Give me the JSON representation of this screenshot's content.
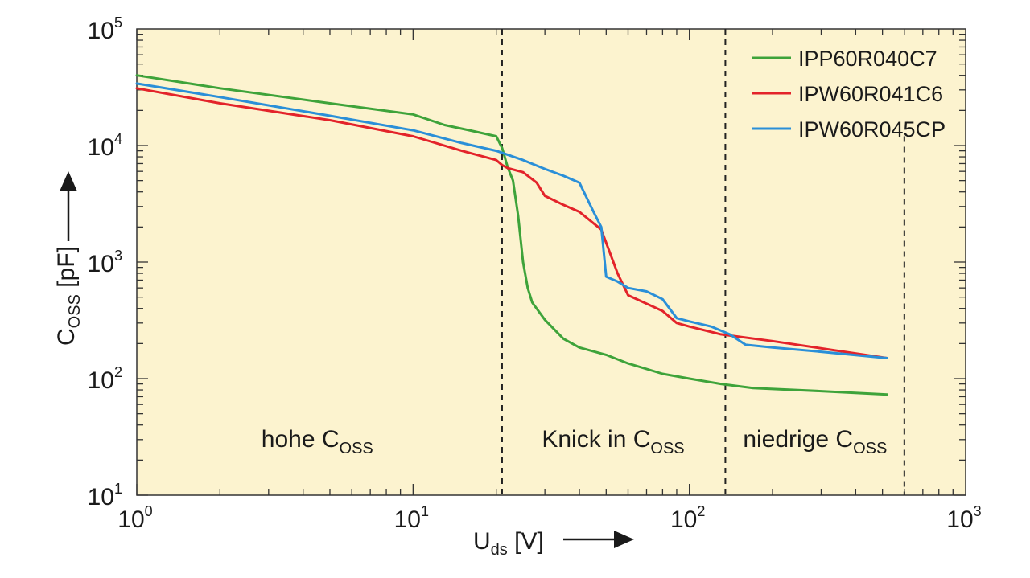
{
  "chart_data": {
    "type": "line",
    "title": "",
    "x_scale": "log",
    "y_scale": "log",
    "xlim": [
      1,
      1000
    ],
    "ylim": [
      10,
      100000
    ],
    "plot_background": "#fcf3cf",
    "xlabel": {
      "main": "U",
      "sub": "ds",
      "unit": " [V]"
    },
    "ylabel": {
      "main": "C",
      "sub": "OSS",
      "unit": " [pF]"
    },
    "x_ticks": [
      {
        "base": "10",
        "exp": "0",
        "value": 1
      },
      {
        "base": "10",
        "exp": "1",
        "value": 10
      },
      {
        "base": "10",
        "exp": "2",
        "value": 100
      },
      {
        "base": "10",
        "exp": "3",
        "value": 1000
      }
    ],
    "y_ticks": [
      {
        "base": "10",
        "exp": "1",
        "value": 10
      },
      {
        "base": "10",
        "exp": "2",
        "value": 100
      },
      {
        "base": "10",
        "exp": "3",
        "value": 1000
      },
      {
        "base": "10",
        "exp": "4",
        "value": 10000
      },
      {
        "base": "10",
        "exp": "5",
        "value": 100000
      }
    ],
    "vlines": [
      21,
      135,
      600
    ],
    "regions": [
      {
        "main": "hohe C",
        "sub": "OSS",
        "x_center": 4.5
      },
      {
        "main": "Knick in C",
        "sub": "OSS",
        "x_center": 53
      },
      {
        "main": "niedrige C",
        "sub": "OSS",
        "x_center": 285
      }
    ],
    "legend_position": "top-right",
    "series": [
      {
        "name": "IPP60R040C7",
        "color": "#3ea33a",
        "x": [
          1,
          2,
          5,
          10,
          13,
          16,
          20,
          21,
          22,
          23,
          24,
          25,
          26,
          27,
          30,
          35,
          40,
          50,
          60,
          80,
          100,
          130,
          170,
          300,
          520
        ],
        "y": [
          40000,
          31000,
          23000,
          18500,
          15000,
          13500,
          12000,
          9500,
          6500,
          5000,
          2500,
          1000,
          600,
          450,
          320,
          220,
          185,
          160,
          135,
          110,
          100,
          90,
          83,
          78,
          73
        ]
      },
      {
        "name": "IPW60R041C6",
        "color": "#e3232a",
        "x": [
          1,
          2,
          5,
          10,
          15,
          20,
          21,
          22,
          25,
          28,
          30,
          35,
          40,
          48,
          55,
          60,
          80,
          90,
          100,
          130,
          200,
          520
        ],
        "y": [
          31000,
          23000,
          16500,
          12000,
          9000,
          7500,
          6800,
          6400,
          5900,
          4800,
          3700,
          3100,
          2700,
          1900,
          800,
          520,
          380,
          300,
          280,
          240,
          210,
          150
        ]
      },
      {
        "name": "IPW60R045CP",
        "color": "#2a8fd8",
        "x": [
          1,
          2,
          5,
          10,
          15,
          20,
          25,
          30,
          35,
          40,
          45,
          48,
          50,
          55,
          60,
          70,
          80,
          90,
          100,
          120,
          140,
          160,
          200,
          300,
          520
        ],
        "y": [
          34000,
          26000,
          18000,
          13500,
          10500,
          9000,
          7500,
          6300,
          5500,
          4800,
          2700,
          2000,
          750,
          680,
          600,
          560,
          480,
          330,
          310,
          280,
          240,
          195,
          185,
          170,
          150
        ]
      }
    ]
  }
}
